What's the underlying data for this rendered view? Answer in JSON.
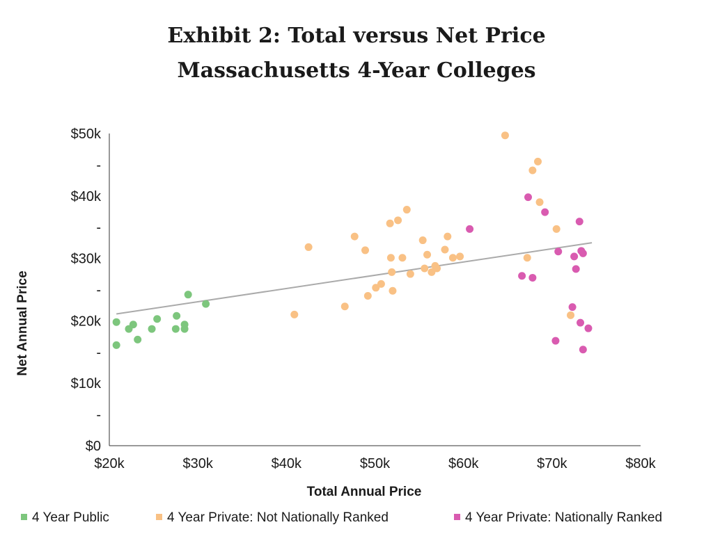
{
  "chart_data": {
    "type": "scatter",
    "title_line1": "Exhibit 2: Total versus Net Price",
    "title_line2": "Massachusetts 4-Year Colleges",
    "xlabel": "Total Annual Price",
    "ylabel": "Net Annual Price",
    "xlim": [
      20000,
      80000
    ],
    "ylim": [
      0,
      50000
    ],
    "x_ticks": [
      {
        "value": 20000,
        "label": "$20k"
      },
      {
        "value": 30000,
        "label": "$30k"
      },
      {
        "value": 40000,
        "label": "$40k"
      },
      {
        "value": 50000,
        "label": "$50k"
      },
      {
        "value": 60000,
        "label": "$60k"
      },
      {
        "value": 70000,
        "label": "$70k"
      },
      {
        "value": 80000,
        "label": "$80k"
      }
    ],
    "y_ticks": [
      {
        "value": 0,
        "label": "$0"
      },
      {
        "value": 5000,
        "label": "-"
      },
      {
        "value": 10000,
        "label": "$10k"
      },
      {
        "value": 15000,
        "label": "-"
      },
      {
        "value": 20000,
        "label": "$20k"
      },
      {
        "value": 25000,
        "label": "-"
      },
      {
        "value": 30000,
        "label": "$30k"
      },
      {
        "value": 35000,
        "label": "-"
      },
      {
        "value": 40000,
        "label": "$40k"
      },
      {
        "value": 45000,
        "label": "-"
      },
      {
        "value": 50000,
        "label": "$50k"
      }
    ],
    "grid": false,
    "legend_position": "bottom",
    "trendline": {
      "x": [
        20800,
        74500
      ],
      "y": [
        21100,
        32500
      ],
      "color": "#aaaaaa"
    },
    "series": [
      {
        "name": "4 Year Public",
        "color": "#7dc67d",
        "points": [
          [
            20800,
            19800
          ],
          [
            20800,
            16100
          ],
          [
            22200,
            18700
          ],
          [
            22700,
            19400
          ],
          [
            23200,
            17000
          ],
          [
            24800,
            18700
          ],
          [
            25400,
            20300
          ],
          [
            27500,
            18700
          ],
          [
            27600,
            20800
          ],
          [
            28500,
            18700
          ],
          [
            28500,
            19400
          ],
          [
            28900,
            24200
          ],
          [
            30900,
            22700
          ]
        ]
      },
      {
        "name": "4 Year Private: Not Nationally Ranked",
        "color": "#f9c185",
        "points": [
          [
            40900,
            21000
          ],
          [
            42500,
            31800
          ],
          [
            46600,
            22300
          ],
          [
            47700,
            33500
          ],
          [
            48900,
            31300
          ],
          [
            49200,
            24000
          ],
          [
            50100,
            25300
          ],
          [
            50700,
            25900
          ],
          [
            51700,
            35600
          ],
          [
            51800,
            30100
          ],
          [
            51900,
            27800
          ],
          [
            52000,
            24800
          ],
          [
            52600,
            36100
          ],
          [
            53100,
            30100
          ],
          [
            53600,
            37800
          ],
          [
            54000,
            27500
          ],
          [
            55400,
            32900
          ],
          [
            55600,
            28400
          ],
          [
            55900,
            30600
          ],
          [
            56400,
            27800
          ],
          [
            56800,
            28800
          ],
          [
            57000,
            28400
          ],
          [
            57900,
            31400
          ],
          [
            58200,
            33500
          ],
          [
            58800,
            30100
          ],
          [
            59600,
            30300
          ],
          [
            64700,
            49700
          ],
          [
            67200,
            30100
          ],
          [
            67800,
            44100
          ],
          [
            68400,
            45500
          ],
          [
            68600,
            39000
          ],
          [
            70500,
            34700
          ],
          [
            72100,
            20900
          ]
        ]
      },
      {
        "name": "4 Year Private: Nationally Ranked",
        "color": "#d95bb0",
        "points": [
          [
            60700,
            34700
          ],
          [
            66600,
            27200
          ],
          [
            67300,
            39800
          ],
          [
            67800,
            26900
          ],
          [
            69200,
            37400
          ],
          [
            70400,
            16800
          ],
          [
            70700,
            31100
          ],
          [
            72300,
            22200
          ],
          [
            72500,
            30300
          ],
          [
            72700,
            28300
          ],
          [
            73100,
            35900
          ],
          [
            73200,
            19700
          ],
          [
            73300,
            31200
          ],
          [
            73500,
            30800
          ],
          [
            73500,
            15400
          ],
          [
            74100,
            18800
          ]
        ]
      }
    ]
  }
}
